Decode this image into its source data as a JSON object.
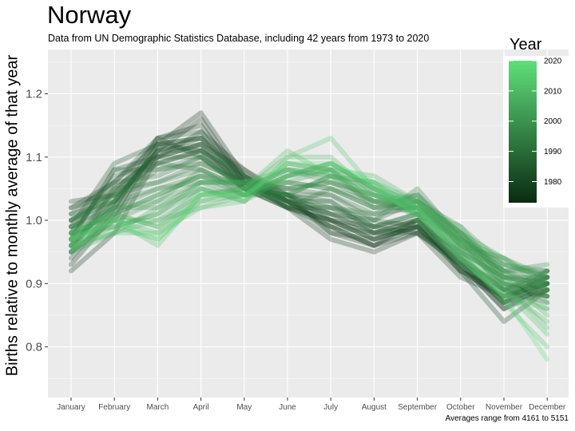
{
  "title": "Norway",
  "subtitle": "Data from UN Demographic Statistics Database, including 42 years from 1973 to 2020",
  "caption": "Averages range from 4161 to 5151",
  "chart_data": {
    "type": "line",
    "ylabel": "Births relative to monthly average of that year",
    "categories": [
      "January",
      "February",
      "March",
      "April",
      "May",
      "June",
      "July",
      "August",
      "September",
      "October",
      "November",
      "December"
    ],
    "ylim": [
      0.72,
      1.27
    ],
    "yticks": [
      "0.8",
      "0.9",
      "1.0",
      "1.1",
      "1.2"
    ],
    "ytick_values": [
      0.8,
      0.9,
      1.0,
      1.1,
      1.2
    ],
    "grid": true,
    "legend": {
      "title": "Year",
      "position": "top-right",
      "type": "colorbar",
      "range": [
        1973,
        2020
      ],
      "ticks": [
        "2020",
        "2010",
        "2000",
        "1990",
        "1980"
      ],
      "tick_values": [
        2020,
        2010,
        2000,
        1990,
        1980
      ],
      "color_low": "#0a2a12",
      "color_high": "#5fe07a"
    },
    "series": [
      {
        "year": 1973,
        "values": [
          0.93,
          1.01,
          1.12,
          1.17,
          1.07,
          1.03,
          0.99,
          0.96,
          0.99,
          0.93,
          0.87,
          0.89
        ]
      },
      {
        "year": 1974,
        "values": [
          0.95,
          1.0,
          1.11,
          1.16,
          1.06,
          1.02,
          1.0,
          0.97,
          0.99,
          0.93,
          0.86,
          0.9
        ]
      },
      {
        "year": 1975,
        "values": [
          0.92,
          0.98,
          1.1,
          1.14,
          1.08,
          1.04,
          0.98,
          0.96,
          1.0,
          0.92,
          0.88,
          0.91
        ]
      },
      {
        "year": 1976,
        "values": [
          0.94,
          1.02,
          1.13,
          1.15,
          1.06,
          1.02,
          0.97,
          0.95,
          0.98,
          0.94,
          0.87,
          0.9
        ]
      },
      {
        "year": 1977,
        "values": [
          0.96,
          1.03,
          1.11,
          1.13,
          1.07,
          1.03,
          1.0,
          0.97,
          0.99,
          0.92,
          0.89,
          0.88
        ]
      },
      {
        "year": 1978,
        "values": [
          0.95,
          1.05,
          1.1,
          1.12,
          1.05,
          1.04,
          1.01,
          0.98,
          1.0,
          0.93,
          0.86,
          0.89
        ]
      },
      {
        "year": 1979,
        "values": [
          1.03,
          1.04,
          1.09,
          1.11,
          1.06,
          1.03,
          0.99,
          0.96,
          0.98,
          0.91,
          0.88,
          0.9
        ]
      },
      {
        "year": 1980,
        "values": [
          1.02,
          1.06,
          1.12,
          1.13,
          1.07,
          1.02,
          1.0,
          0.98,
          0.99,
          0.92,
          0.84,
          0.89
        ]
      },
      {
        "year": 1981,
        "values": [
          0.97,
          1.08,
          1.1,
          1.12,
          1.08,
          1.03,
          0.98,
          0.97,
          1.0,
          0.94,
          0.87,
          0.91
        ]
      },
      {
        "year": 1982,
        "values": [
          1.01,
          1.06,
          1.13,
          1.1,
          1.06,
          1.04,
          1.0,
          0.99,
          0.98,
          0.93,
          0.89,
          0.92
        ]
      },
      {
        "year": 1983,
        "values": [
          0.99,
          1.09,
          1.12,
          1.11,
          1.05,
          1.02,
          1.02,
          0.99,
          1.01,
          0.92,
          0.88,
          0.9
        ]
      },
      {
        "year": 1984,
        "values": [
          1.0,
          1.03,
          1.11,
          1.12,
          1.06,
          1.03,
          1.01,
          1.0,
          0.99,
          0.95,
          0.87,
          0.92
        ]
      },
      {
        "year": 1985,
        "values": [
          0.98,
          1.07,
          1.09,
          1.11,
          1.07,
          1.04,
          1.03,
          0.98,
          1.0,
          0.94,
          0.89,
          0.91
        ]
      },
      {
        "year": 1986,
        "values": [
          1.02,
          1.04,
          1.13,
          1.14,
          1.05,
          1.02,
          0.99,
          0.98,
          0.98,
          0.93,
          0.9,
          0.88
        ]
      },
      {
        "year": 1987,
        "values": [
          0.99,
          1.02,
          1.12,
          1.13,
          1.06,
          1.03,
          1.01,
          0.99,
          1.0,
          0.95,
          0.91,
          0.9
        ]
      },
      {
        "year": 1988,
        "values": [
          1.0,
          1.05,
          1.1,
          1.1,
          1.05,
          1.04,
          1.02,
          1.01,
          1.02,
          0.94,
          0.89,
          0.87
        ]
      },
      {
        "year": 1989,
        "values": [
          0.97,
          1.08,
          1.08,
          1.09,
          1.06,
          1.05,
          1.04,
          1.0,
          1.03,
          0.96,
          0.9,
          0.89
        ]
      },
      {
        "year": 1990,
        "values": [
          1.01,
          1.03,
          1.11,
          1.11,
          1.07,
          1.03,
          1.03,
          0.99,
          1.01,
          0.95,
          0.91,
          0.91
        ]
      },
      {
        "year": 1991,
        "values": [
          0.98,
          1.06,
          1.07,
          1.1,
          1.05,
          1.02,
          1.05,
          1.02,
          1.02,
          0.97,
          0.89,
          0.9
        ]
      },
      {
        "year": 1992,
        "values": [
          1.0,
          1.04,
          1.09,
          1.08,
          1.04,
          1.04,
          1.04,
          1.01,
          1.04,
          0.96,
          0.92,
          0.92
        ]
      },
      {
        "year": 1993,
        "values": [
          0.96,
          1.05,
          1.06,
          1.09,
          1.06,
          1.05,
          1.06,
          1.03,
          1.02,
          0.98,
          0.9,
          0.88
        ]
      },
      {
        "year": 1994,
        "values": [
          0.99,
          1.03,
          1.08,
          1.1,
          1.05,
          1.03,
          1.02,
          1.0,
          1.05,
          0.97,
          0.93,
          0.91
        ]
      },
      {
        "year": 1995,
        "values": [
          0.97,
          1.02,
          1.05,
          1.07,
          1.04,
          1.06,
          1.05,
          1.02,
          1.03,
          0.98,
          0.91,
          0.89
        ]
      },
      {
        "year": 1996,
        "values": [
          1.0,
          1.04,
          1.06,
          1.08,
          1.05,
          1.04,
          1.07,
          1.03,
          1.01,
          0.97,
          0.92,
          0.9
        ]
      },
      {
        "year": 1997,
        "values": [
          0.98,
          1.01,
          1.04,
          1.07,
          1.06,
          1.05,
          1.06,
          1.04,
          1.02,
          0.96,
          0.94,
          0.91
        ]
      },
      {
        "year": 1998,
        "values": [
          0.96,
          1.03,
          1.05,
          1.06,
          1.04,
          1.07,
          1.08,
          1.02,
          1.04,
          0.98,
          0.92,
          0.93
        ]
      },
      {
        "year": 1999,
        "values": [
          0.99,
          1.0,
          1.03,
          1.08,
          1.05,
          1.06,
          1.05,
          1.03,
          1.03,
          0.99,
          0.91,
          0.9
        ]
      },
      {
        "year": 2000,
        "values": [
          0.97,
          1.02,
          1.02,
          1.06,
          1.06,
          1.04,
          1.07,
          1.05,
          1.02,
          0.97,
          0.93,
          0.92
        ]
      },
      {
        "year": 2001,
        "values": [
          0.95,
          1.01,
          1.04,
          1.07,
          1.05,
          1.08,
          1.06,
          1.04,
          1.01,
          0.96,
          0.92,
          0.89
        ]
      },
      {
        "year": 2002,
        "values": [
          0.98,
          0.99,
          1.01,
          1.05,
          1.04,
          1.07,
          1.09,
          1.05,
          1.03,
          0.98,
          0.94,
          0.9
        ]
      },
      {
        "year": 2003,
        "values": [
          0.96,
          1.02,
          1.03,
          1.06,
          1.06,
          1.06,
          1.08,
          1.03,
          1.04,
          0.97,
          0.91,
          0.88
        ]
      },
      {
        "year": 2004,
        "values": [
          0.97,
          1.0,
          1.0,
          1.04,
          1.05,
          1.08,
          1.07,
          1.06,
          1.02,
          0.99,
          0.93,
          0.91
        ]
      },
      {
        "year": 2005,
        "values": [
          0.95,
          0.98,
          1.02,
          1.05,
          1.03,
          1.09,
          1.08,
          1.04,
          1.03,
          0.98,
          0.92,
          0.87
        ]
      },
      {
        "year": 2006,
        "values": [
          0.98,
          1.01,
          0.99,
          1.03,
          1.04,
          1.07,
          1.09,
          1.05,
          1.01,
          0.97,
          0.94,
          0.89
        ]
      },
      {
        "year": 2007,
        "values": [
          0.96,
          0.99,
          1.01,
          1.06,
          1.06,
          1.08,
          1.07,
          1.06,
          1.03,
          0.96,
          0.9,
          0.86
        ]
      },
      {
        "year": 2008,
        "values": [
          0.97,
          1.0,
          0.98,
          1.04,
          1.05,
          1.1,
          1.1,
          1.04,
          1.02,
          0.95,
          0.91,
          0.85
        ]
      },
      {
        "year": 2009,
        "values": [
          0.96,
          0.98,
          1.0,
          1.02,
          1.04,
          1.09,
          1.08,
          1.07,
          1.03,
          0.97,
          0.89,
          0.84
        ]
      },
      {
        "year": 2010,
        "values": [
          0.98,
          1.01,
          0.99,
          1.05,
          1.03,
          1.07,
          1.09,
          1.05,
          1.01,
          0.94,
          0.9,
          0.83
        ]
      },
      {
        "year": 2011,
        "values": [
          0.97,
          0.99,
          0.97,
          1.03,
          1.05,
          1.11,
          1.07,
          1.04,
          1.02,
          0.96,
          0.88,
          0.86
        ]
      },
      {
        "year": 2012,
        "values": [
          0.95,
          1.0,
          0.96,
          1.04,
          1.04,
          1.08,
          1.08,
          1.06,
          1.0,
          0.93,
          0.89,
          0.82
        ]
      },
      {
        "year": 2013,
        "values": [
          0.96,
          0.98,
          0.98,
          1.02,
          1.03,
          1.1,
          1.13,
          1.05,
          1.01,
          0.95,
          0.87,
          0.8
        ]
      },
      {
        "year": 2020,
        "values": [
          0.97,
          1.0,
          0.97,
          1.04,
          1.04,
          1.09,
          1.09,
          1.06,
          1.02,
          0.94,
          0.88,
          0.78
        ]
      }
    ]
  }
}
